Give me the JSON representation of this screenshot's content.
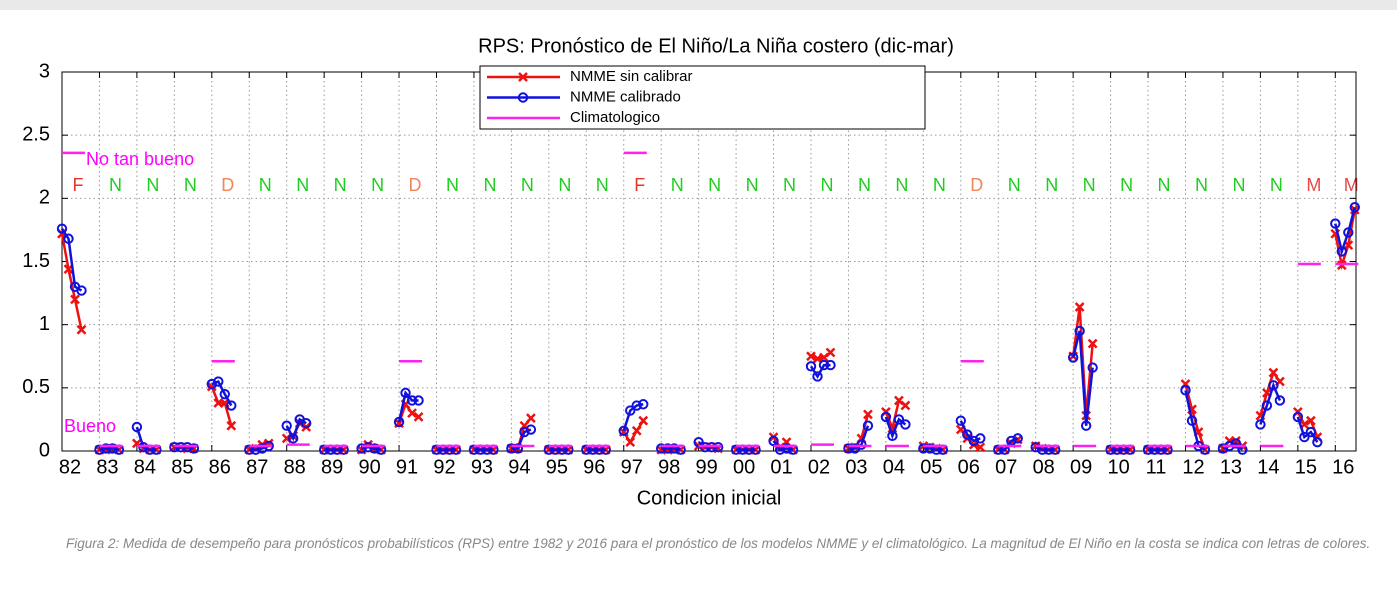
{
  "chart_data": {
    "type": "line",
    "title": "RPS: Pronóstico de El Niño/La Niña costero (dic-mar)",
    "x_label": "Condicion inicial",
    "categories": [
      "82",
      "83",
      "84",
      "85",
      "86",
      "87",
      "88",
      "89",
      "90",
      "91",
      "92",
      "93",
      "94",
      "95",
      "96",
      "97",
      "98",
      "99",
      "00",
      "01",
      "02",
      "03",
      "04",
      "05",
      "06",
      "07",
      "08",
      "09",
      "10",
      "11",
      "12",
      "13",
      "14",
      "15",
      "16"
    ],
    "magnitude": [
      "F",
      "N",
      "N",
      "N",
      "D",
      "N",
      "N",
      "N",
      "N",
      "D",
      "N",
      "N",
      "N",
      "N",
      "N",
      "F",
      "N",
      "N",
      "N",
      "N",
      "N",
      "N",
      "N",
      "N",
      "D",
      "N",
      "N",
      "N",
      "N",
      "N",
      "N",
      "N",
      "N",
      "M",
      "M"
    ],
    "magnitude_colors": {
      "F": "#e0392b",
      "N": "#22cc22",
      "D": "#f0875a",
      "M": "#e84848"
    },
    "annotations": [
      "No tan bueno",
      "Bueno"
    ],
    "annotation_color": "#ff00ff",
    "series": [
      {
        "name": "NMME sin calibrar",
        "color": "#ee1111",
        "marker": "x",
        "values": [
          [
            1.72,
            1.44,
            1.2,
            0.96
          ],
          [
            0.01,
            0.01,
            0.02,
            0.01
          ],
          [
            0.06,
            0.02,
            0.01,
            0.01
          ],
          [
            0.03,
            0.03,
            0.02,
            0.02
          ],
          [
            0.51,
            0.38,
            0.38,
            0.2
          ],
          [
            0.01,
            0.02,
            0.05,
            0.06
          ],
          [
            0.1,
            0.12,
            0.22,
            0.19
          ],
          [
            0.01,
            0.01,
            0.01,
            0.01
          ],
          [
            0.01,
            0.05,
            0.02,
            0.01
          ],
          [
            0.22,
            0.37,
            0.3,
            0.27
          ],
          [
            0.01,
            0.01,
            0.01,
            0.01
          ],
          [
            0.01,
            0.01,
            0.01,
            0.01
          ],
          [
            0.02,
            0.02,
            0.2,
            0.26
          ],
          [
            0.01,
            0.01,
            0.01,
            0.01
          ],
          [
            0.01,
            0.01,
            0.01,
            0.01
          ],
          [
            0.15,
            0.07,
            0.16,
            0.24
          ],
          [
            0.01,
            0.01,
            0.01,
            0.01
          ],
          [
            0.04,
            0.03,
            0.03,
            0.02
          ],
          [
            0.01,
            0.01,
            0.01,
            0.01
          ],
          [
            0.11,
            0.03,
            0.07,
            0.01
          ],
          [
            0.75,
            0.73,
            0.74,
            0.78
          ],
          [
            0.02,
            0.03,
            0.1,
            0.29
          ],
          [
            0.31,
            0.18,
            0.4,
            0.36
          ],
          [
            0.04,
            0.03,
            0.02,
            0.01
          ],
          [
            0.17,
            0.1,
            0.05,
            0.03
          ],
          [
            0.01,
            0.01,
            0.06,
            0.09
          ],
          [
            0.04,
            0.02,
            0.01,
            0.01
          ],
          [
            0.75,
            1.14,
            0.28,
            0.85
          ],
          [
            0.01,
            0.01,
            0.01,
            0.01
          ],
          [
            0.01,
            0.01,
            0.01,
            0.01
          ],
          [
            0.53,
            0.33,
            0.15,
            0.01
          ],
          [
            0.02,
            0.08,
            0.08,
            0.04
          ],
          [
            0.28,
            0.46,
            0.62,
            0.55
          ],
          [
            0.31,
            0.21,
            0.24,
            0.11
          ],
          [
            1.72,
            1.47,
            1.63,
            1.91
          ]
        ]
      },
      {
        "name": "NMME calibrado",
        "color": "#1111dd",
        "marker": "o",
        "values": [
          [
            1.76,
            1.68,
            1.3,
            1.27
          ],
          [
            0.01,
            0.02,
            0.02,
            0.01
          ],
          [
            0.19,
            0.03,
            0.01,
            0.01
          ],
          [
            0.03,
            0.03,
            0.03,
            0.02
          ],
          [
            0.53,
            0.55,
            0.45,
            0.36
          ],
          [
            0.01,
            0.01,
            0.02,
            0.04
          ],
          [
            0.2,
            0.1,
            0.25,
            0.22
          ],
          [
            0.01,
            0.01,
            0.01,
            0.01
          ],
          [
            0.02,
            0.03,
            0.02,
            0.01
          ],
          [
            0.23,
            0.46,
            0.4,
            0.4
          ],
          [
            0.01,
            0.01,
            0.01,
            0.01
          ],
          [
            0.01,
            0.01,
            0.01,
            0.01
          ],
          [
            0.02,
            0.02,
            0.15,
            0.17
          ],
          [
            0.01,
            0.01,
            0.01,
            0.01
          ],
          [
            0.01,
            0.01,
            0.01,
            0.01
          ],
          [
            0.16,
            0.32,
            0.36,
            0.37
          ],
          [
            0.02,
            0.02,
            0.02,
            0.01
          ],
          [
            0.07,
            0.03,
            0.03,
            0.03
          ],
          [
            0.01,
            0.01,
            0.01,
            0.01
          ],
          [
            0.08,
            0.01,
            0.02,
            0.01
          ],
          [
            0.67,
            0.59,
            0.68,
            0.68
          ],
          [
            0.02,
            0.02,
            0.05,
            0.2
          ],
          [
            0.27,
            0.12,
            0.25,
            0.21
          ],
          [
            0.02,
            0.02,
            0.01,
            0.01
          ],
          [
            0.24,
            0.13,
            0.08,
            0.1
          ],
          [
            0.01,
            0.01,
            0.08,
            0.1
          ],
          [
            0.03,
            0.01,
            0.01,
            0.01
          ],
          [
            0.74,
            0.95,
            0.2,
            0.66
          ],
          [
            0.01,
            0.01,
            0.01,
            0.01
          ],
          [
            0.01,
            0.01,
            0.01,
            0.01
          ],
          [
            0.48,
            0.24,
            0.04,
            0.01
          ],
          [
            0.02,
            0.04,
            0.06,
            0.01
          ],
          [
            0.21,
            0.36,
            0.52,
            0.4
          ],
          [
            0.27,
            0.11,
            0.15,
            0.07
          ],
          [
            1.8,
            1.58,
            1.73,
            1.93
          ]
        ]
      },
      {
        "name": "Climatologico",
        "color": "#ff22ee",
        "marker": "segment",
        "values": [
          2.36,
          0.04,
          0.04,
          0.04,
          0.71,
          0.04,
          0.05,
          0.04,
          0.04,
          0.71,
          0.04,
          0.04,
          0.04,
          0.04,
          0.04,
          2.36,
          0.04,
          0.04,
          0.04,
          0.04,
          0.05,
          0.04,
          0.04,
          0.04,
          0.71,
          0.04,
          0.04,
          0.04,
          0.04,
          0.04,
          0.04,
          0.04,
          0.04,
          1.48,
          1.48
        ]
      }
    ],
    "ylim": [
      0,
      3
    ],
    "yticks": [
      0,
      0.5,
      1,
      1.5,
      2,
      2.5,
      3
    ],
    "grid": true,
    "legend": "top",
    "caption": "Figura 2: Medida de desempeño para pronósticos probabilísticos (RPS) entre 1982 y 2016 para el pronóstico de los modelos NMME y el climatológico. La magnitud de El Niño en la costa se indica con letras de colores."
  }
}
